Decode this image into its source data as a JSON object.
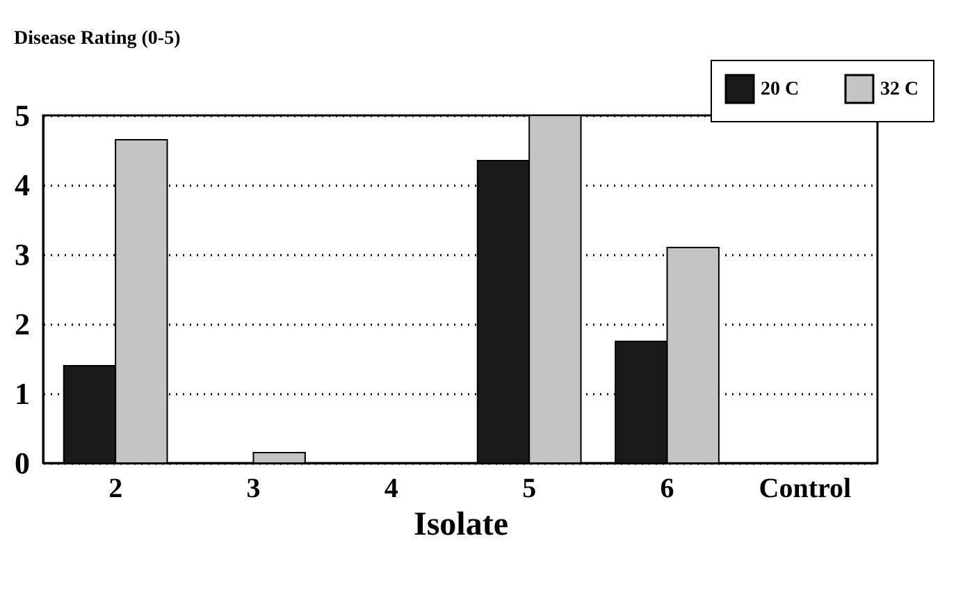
{
  "chart_data": {
    "type": "bar",
    "xlabel": "Isolate",
    "ylabel": "Disease Rating (0-5)",
    "categories": [
      "2",
      "3",
      "4",
      "5",
      "6",
      "Control"
    ],
    "series": [
      {
        "name": "20 C",
        "color": "#1a1a1a",
        "values": [
          1.4,
          0,
          0,
          4.35,
          1.75,
          0
        ]
      },
      {
        "name": "32 C",
        "color": "#c4c4c4",
        "values": [
          4.65,
          0.15,
          0,
          5.0,
          3.1,
          0
        ]
      }
    ],
    "ylim": [
      0,
      5
    ],
    "yticks": [
      0,
      1,
      2,
      3,
      4,
      5
    ],
    "grid": "y",
    "legend": "top right",
    "line_style": "dotted"
  }
}
